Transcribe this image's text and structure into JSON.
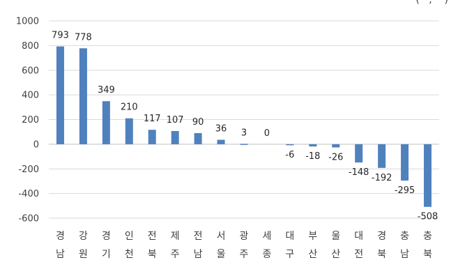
{
  "chart_data": {
    "type": "bar",
    "title": "",
    "xlabel": "",
    "ylabel": "",
    "top_note": "(···, ···)",
    "categories": [
      "경남",
      "강원",
      "경기",
      "인천",
      "전북",
      "제주",
      "전남",
      "서울",
      "광주",
      "세종",
      "대구",
      "부산",
      "울산",
      "대전",
      "경북",
      "충남",
      "충북"
    ],
    "values": [
      793,
      778,
      349,
      210,
      117,
      107,
      90,
      36,
      3,
      0,
      -6,
      -18,
      -26,
      -148,
      -192,
      -295,
      -508
    ],
    "data_labels": [
      "793",
      "778",
      "349",
      "210",
      "117",
      "107",
      "90",
      "36",
      "3",
      "0",
      "-6",
      "-18",
      "-26",
      "-148",
      "-192",
      "-295",
      "-508"
    ],
    "yticks": [
      1000,
      800,
      600,
      400,
      200,
      0,
      -200,
      -400,
      -600
    ],
    "ytick_labels": [
      "1000",
      "800",
      "600",
      "400",
      "200",
      "0",
      "-200",
      "-400",
      "-600"
    ],
    "ylim": [
      -600,
      1000
    ],
    "grid": true,
    "legend": "none",
    "bar_color": "#4f81bd"
  }
}
